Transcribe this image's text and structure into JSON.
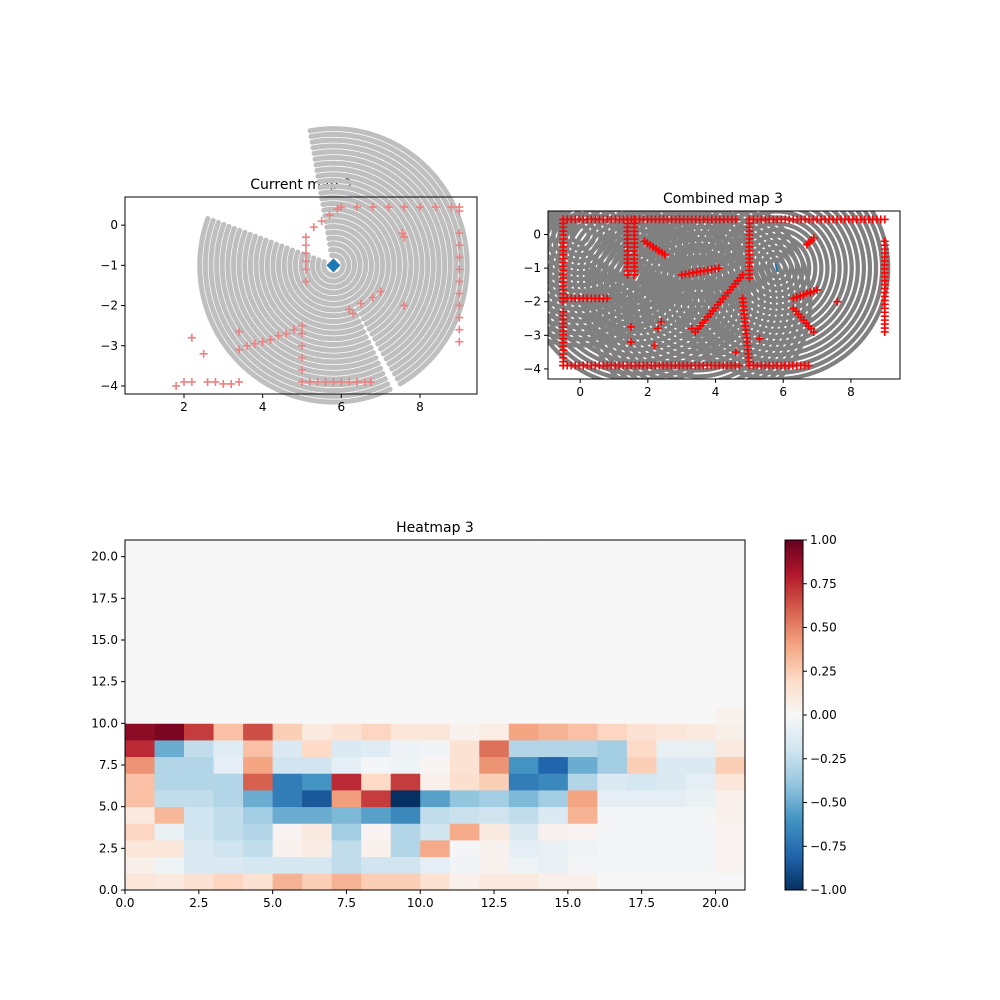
{
  "figure": {
    "background": "#ffffff"
  },
  "chart_data": [
    {
      "id": "current",
      "type": "scatter",
      "title": "Current map 3",
      "xlabel": "",
      "ylabel": "",
      "xlim": [
        0.5,
        9.45
      ],
      "ylim": [
        -4.2,
        0.7
      ],
      "xticks": [
        2,
        4,
        6,
        8
      ],
      "yticks": [
        0,
        -1,
        -2,
        -3,
        -4
      ],
      "grid": false,
      "robot": {
        "x": 5.8,
        "y": -1.0,
        "color": "#1f77b4",
        "marker": "diamond"
      },
      "scan_origin": [
        5.8,
        -1.0
      ],
      "scan_rings": {
        "min_radius": 0.25,
        "max_radius": 3.4,
        "count": 23,
        "color": "#bfbfbf",
        "sectors": [
          [
            -60,
            90
          ],
          [
            90,
            100
          ],
          [
            160,
            210
          ],
          [
            210,
            260
          ],
          [
            260,
            295
          ]
        ]
      },
      "obstacle_color": "#f08080",
      "obstacle_points": [
        [
          1.8,
          -4.0
        ],
        [
          2.0,
          -3.9
        ],
        [
          2.2,
          -3.9
        ],
        [
          2.6,
          -3.9
        ],
        [
          2.8,
          -3.9
        ],
        [
          3.0,
          -3.95
        ],
        [
          3.2,
          -3.95
        ],
        [
          3.4,
          -3.9
        ],
        [
          2.2,
          -2.8
        ],
        [
          2.5,
          -3.2
        ],
        [
          3.4,
          -2.65
        ],
        [
          3.4,
          -3.1
        ],
        [
          3.6,
          -3.0
        ],
        [
          3.8,
          -2.95
        ],
        [
          4.0,
          -2.9
        ],
        [
          4.2,
          -2.85
        ],
        [
          4.4,
          -2.75
        ],
        [
          4.6,
          -2.7
        ],
        [
          4.8,
          -2.6
        ],
        [
          5.0,
          -2.5
        ],
        [
          5.0,
          -2.7
        ],
        [
          5.0,
          -3.0
        ],
        [
          5.0,
          -3.3
        ],
        [
          5.0,
          -3.6
        ],
        [
          5.0,
          -3.9
        ],
        [
          5.2,
          -3.9
        ],
        [
          5.4,
          -3.9
        ],
        [
          5.6,
          -3.9
        ],
        [
          5.8,
          -3.9
        ],
        [
          6.0,
          -3.9
        ],
        [
          6.2,
          -3.9
        ],
        [
          6.4,
          -3.9
        ],
        [
          6.6,
          -3.9
        ],
        [
          6.75,
          -3.9
        ],
        [
          5.1,
          -0.3
        ],
        [
          5.1,
          -0.5
        ],
        [
          5.1,
          -0.7
        ],
        [
          5.1,
          -0.9
        ],
        [
          5.1,
          -1.1
        ],
        [
          5.1,
          -1.4
        ],
        [
          5.3,
          -0.05
        ],
        [
          5.5,
          0.1
        ],
        [
          5.7,
          0.25
        ],
        [
          5.9,
          0.4
        ],
        [
          6.0,
          0.45
        ],
        [
          6.4,
          0.45
        ],
        [
          6.8,
          0.45
        ],
        [
          7.2,
          0.45
        ],
        [
          7.6,
          0.45
        ],
        [
          8.0,
          0.45
        ],
        [
          8.4,
          0.45
        ],
        [
          8.8,
          0.45
        ],
        [
          9.0,
          0.45
        ],
        [
          9.0,
          0.35
        ],
        [
          7.55,
          -0.2
        ],
        [
          7.6,
          -0.3
        ],
        [
          6.2,
          -2.1
        ],
        [
          6.5,
          -1.95
        ],
        [
          6.8,
          -1.8
        ],
        [
          7.0,
          -1.65
        ],
        [
          6.3,
          -2.2
        ],
        [
          9.0,
          -0.2
        ],
        [
          9.0,
          -0.5
        ],
        [
          9.0,
          -0.8
        ],
        [
          9.0,
          -1.1
        ],
        [
          9.0,
          -1.4
        ],
        [
          9.0,
          -1.7
        ],
        [
          9.0,
          -2.0
        ],
        [
          9.0,
          -2.3
        ],
        [
          9.0,
          -2.6
        ],
        [
          9.0,
          -2.9
        ],
        [
          7.6,
          -2.0
        ]
      ]
    },
    {
      "id": "combined",
      "type": "scatter",
      "title": "Combined map 3",
      "xlabel": "",
      "ylabel": "",
      "xlim": [
        -0.95,
        9.45
      ],
      "ylim": [
        -4.3,
        0.7
      ],
      "xticks": [
        0,
        2,
        4,
        6,
        8
      ],
      "yticks": [
        0,
        -1,
        -2,
        -3,
        -4
      ],
      "grid": false,
      "scan_origins": [
        [
          0.0,
          0.0
        ],
        [
          1.7,
          -1.2
        ],
        [
          3.5,
          -2.0
        ],
        [
          5.8,
          -1.0
        ]
      ],
      "scan_color": "#808080",
      "robot": {
        "x": 5.8,
        "y": -1.0,
        "color": "#1f77b4",
        "marker": "tick"
      },
      "obstacle_color": "#ff0000",
      "obstacle_segments": [
        [
          [
            -0.5,
            0.45
          ],
          [
            4.6,
            0.45
          ]
        ],
        [
          [
            -0.5,
            0.45
          ],
          [
            -0.5,
            -2.0
          ]
        ],
        [
          [
            -0.5,
            -1.9
          ],
          [
            0.8,
            -1.9
          ]
        ],
        [
          [
            1.4,
            0.45
          ],
          [
            1.4,
            -1.2
          ]
        ],
        [
          [
            1.6,
            0.45
          ],
          [
            1.6,
            -1.2
          ]
        ],
        [
          [
            -0.5,
            -2.3
          ],
          [
            -0.5,
            -3.9
          ]
        ],
        [
          [
            -0.5,
            -3.9
          ],
          [
            4.7,
            -3.9
          ]
        ],
        [
          [
            2.5,
            -0.6
          ],
          [
            1.9,
            -0.2
          ]
        ],
        [
          [
            3.0,
            -1.2
          ],
          [
            4.1,
            -1.0
          ]
        ],
        [
          [
            5.0,
            0.45
          ],
          [
            9.0,
            0.45
          ]
        ],
        [
          [
            5.0,
            0.45
          ],
          [
            5.0,
            -1.3
          ]
        ],
        [
          [
            4.8,
            -1.9
          ],
          [
            5.0,
            -3.9
          ]
        ],
        [
          [
            5.0,
            -3.9
          ],
          [
            6.75,
            -3.9
          ]
        ],
        [
          [
            4.8,
            -1.2
          ],
          [
            3.4,
            -2.9
          ]
        ],
        [
          [
            6.7,
            -0.3
          ],
          [
            6.9,
            -0.1
          ]
        ],
        [
          [
            6.3,
            -1.9
          ],
          [
            7.0,
            -1.65
          ]
        ],
        [
          [
            9.0,
            -0.2
          ],
          [
            9.0,
            -2.9
          ]
        ],
        [
          [
            6.3,
            -2.2
          ],
          [
            6.9,
            -2.9
          ]
        ]
      ],
      "obstacle_points": [
        [
          1.5,
          -2.75
        ],
        [
          1.5,
          -3.2
        ],
        [
          2.4,
          -2.6
        ],
        [
          2.3,
          -2.8
        ],
        [
          2.2,
          -3.3
        ],
        [
          3.3,
          -2.8
        ],
        [
          4.6,
          -3.5
        ],
        [
          5.3,
          -3.1
        ],
        [
          7.6,
          -2.0
        ]
      ]
    },
    {
      "id": "heatmap",
      "type": "heatmap",
      "title": "Heatmap 3",
      "xlabel": "",
      "ylabel": "",
      "xlim": [
        0,
        21
      ],
      "ylim": [
        0,
        21
      ],
      "xticks": [
        0.0,
        2.5,
        5.0,
        7.5,
        10.0,
        12.5,
        15.0,
        17.5,
        20.0
      ],
      "yticks": [
        0.0,
        2.5,
        5.0,
        7.5,
        10.0,
        12.5,
        15.0,
        17.5,
        20.0
      ],
      "tick_format": "1dp",
      "colormap": "RdBu_r",
      "vmin": -1.0,
      "vmax": 1.0,
      "colorbar_ticks": [
        1.0,
        0.75,
        0.5,
        0.25,
        0.0,
        -0.25,
        -0.5,
        -0.75,
        -1.0
      ],
      "colorbar_tick_labels": [
        "1.00",
        "0.75",
        "0.50",
        "0.25",
        "0.00",
        "−0.25",
        "−0.50",
        "−0.75",
        "−1.00"
      ],
      "rows_from_bottom": [
        [
          0.12,
          0.1,
          0.15,
          0.22,
          0.15,
          0.35,
          0.25,
          0.35,
          0.25,
          0.25,
          0.15,
          0.05,
          0.1,
          0.1,
          0.05,
          0.05,
          0.0,
          0.0,
          0.0,
          0.0,
          0.0
        ],
        [
          0.06,
          -0.05,
          -0.15,
          -0.15,
          -0.18,
          -0.18,
          -0.18,
          -0.25,
          -0.2,
          -0.2,
          -0.1,
          -0.03,
          0.04,
          -0.05,
          -0.08,
          -0.02,
          -0.02,
          -0.02,
          -0.02,
          -0.02,
          0.03
        ],
        [
          0.12,
          0.12,
          -0.15,
          -0.2,
          -0.25,
          0.04,
          0.08,
          -0.25,
          0.05,
          -0.3,
          0.38,
          -0.02,
          0.04,
          -0.1,
          -0.08,
          -0.04,
          -0.02,
          -0.02,
          -0.02,
          -0.02,
          0.03
        ],
        [
          0.22,
          -0.08,
          -0.2,
          -0.25,
          -0.3,
          0.03,
          0.1,
          -0.35,
          0.03,
          -0.3,
          -0.2,
          0.38,
          0.1,
          -0.15,
          0.04,
          0.03,
          -0.02,
          -0.02,
          -0.02,
          -0.02,
          0.03
        ],
        [
          0.1,
          0.33,
          -0.2,
          -0.25,
          -0.35,
          -0.5,
          -0.5,
          -0.45,
          -0.55,
          -0.65,
          -0.25,
          -0.22,
          -0.2,
          -0.25,
          -0.15,
          0.35,
          -0.02,
          -0.02,
          -0.02,
          -0.02,
          0.05
        ],
        [
          0.3,
          -0.25,
          -0.25,
          -0.3,
          -0.5,
          -0.7,
          -0.85,
          0.42,
          0.7,
          -1.0,
          -0.55,
          -0.4,
          -0.35,
          -0.45,
          -0.35,
          0.4,
          -0.1,
          -0.1,
          -0.1,
          -0.07,
          0.05
        ],
        [
          0.3,
          -0.3,
          -0.3,
          -0.3,
          0.6,
          -0.7,
          -0.6,
          0.75,
          0.2,
          0.7,
          0.05,
          0.17,
          0.25,
          -0.7,
          -0.65,
          -0.3,
          -0.15,
          -0.18,
          -0.15,
          -0.1,
          0.12
        ],
        [
          0.45,
          -0.3,
          -0.3,
          -0.1,
          0.4,
          -0.2,
          -0.2,
          -0.1,
          -0.02,
          -0.05,
          0.02,
          0.15,
          0.45,
          -0.6,
          -0.8,
          -0.5,
          -0.35,
          0.25,
          -0.15,
          -0.15,
          0.25
        ],
        [
          0.75,
          -0.5,
          -0.25,
          -0.12,
          0.3,
          -0.15,
          0.2,
          -0.15,
          -0.12,
          -0.06,
          -0.03,
          0.15,
          0.55,
          -0.3,
          -0.3,
          -0.3,
          -0.35,
          0.2,
          -0.08,
          -0.08,
          0.1
        ],
        [
          0.9,
          0.95,
          0.7,
          0.3,
          0.65,
          0.25,
          0.1,
          0.15,
          0.22,
          0.12,
          0.12,
          0.04,
          0.07,
          0.4,
          0.35,
          0.3,
          0.22,
          0.15,
          0.12,
          0.1,
          0.06
        ],
        [
          0.0,
          0.0,
          0.0,
          0.0,
          0.0,
          0.0,
          0.0,
          0.0,
          0.0,
          0.0,
          0.0,
          0.0,
          0.0,
          0.0,
          0.0,
          0.0,
          0.0,
          0.0,
          0.0,
          0.0,
          0.04
        ]
      ],
      "filled_value": 0.0
    }
  ]
}
